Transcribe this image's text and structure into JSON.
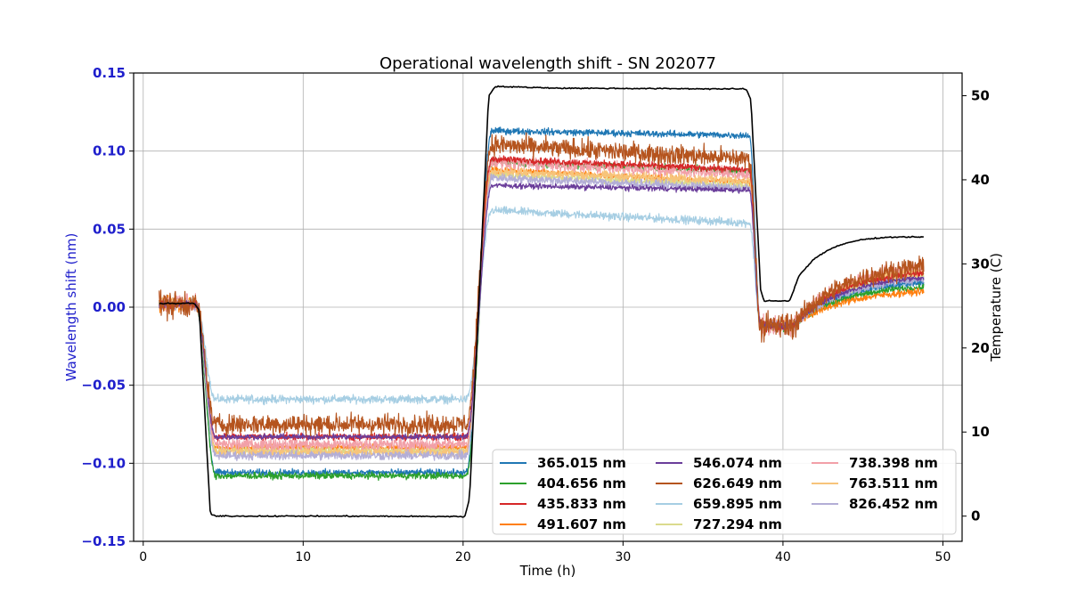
{
  "chart_data": {
    "type": "line",
    "title": "Operational wavelength shift - SN 202077",
    "xlabel": "Time (h)",
    "ylabel": "Wavelength shift (nm)",
    "y2label": "Temperature (C)",
    "xlim": [
      -0.6,
      51.2
    ],
    "ylim": [
      -0.15,
      0.15
    ],
    "y2lim": [
      -3.0,
      52.7
    ],
    "xticks": [
      0,
      10,
      20,
      30,
      40,
      50
    ],
    "yticks": [
      -0.15,
      -0.1,
      -0.05,
      0.0,
      0.05,
      0.1,
      0.15
    ],
    "ytick_labels": [
      "−0.15",
      "−0.10",
      "−0.05",
      "0.00",
      "0.05",
      "0.10",
      "0.15"
    ],
    "y2ticks": [
      0,
      10,
      20,
      30,
      40,
      50
    ],
    "grid": true,
    "legend_position": "lower-right",
    "colors": {
      "left_axis": "#1f1fcc",
      "temperature": "#000000"
    },
    "temperature": {
      "name": "Temperature",
      "color": "#000000",
      "points": [
        [
          1.0,
          25.3
        ],
        [
          3.2,
          25.3
        ],
        [
          3.5,
          24.5
        ],
        [
          4.2,
          0.2
        ],
        [
          4.5,
          0.0
        ],
        [
          12.0,
          0.0
        ],
        [
          20.1,
          -0.05
        ],
        [
          20.4,
          2.0
        ],
        [
          21.6,
          50.0
        ],
        [
          22.0,
          51.1
        ],
        [
          26.0,
          50.9
        ],
        [
          37.7,
          50.8
        ],
        [
          38.0,
          49.5
        ],
        [
          38.6,
          27.0
        ],
        [
          38.8,
          25.6
        ],
        [
          40.4,
          25.6
        ],
        [
          40.6,
          26.5
        ],
        [
          41.0,
          28.6
        ],
        [
          42.0,
          30.7
        ],
        [
          43.0,
          31.8
        ],
        [
          44.0,
          32.5
        ],
        [
          45.0,
          32.9
        ],
        [
          46.0,
          33.1
        ],
        [
          47.0,
          33.2
        ],
        [
          48.8,
          33.2
        ]
      ]
    },
    "series": [
      {
        "name": "365.015 nm",
        "color": "#1f77b4",
        "cold": -0.106,
        "hot_start": 0.113,
        "hot_end": 0.11,
        "noise": 0.0015,
        "warm_end": 0.016
      },
      {
        "name": "404.656 nm",
        "color": "#2ca02c",
        "cold": -0.108,
        "hot_start": 0.093,
        "hot_end": 0.087,
        "noise": 0.0015,
        "warm_end": 0.013
      },
      {
        "name": "435.833 nm",
        "color": "#d62728",
        "cold": -0.083,
        "hot_start": 0.095,
        "hot_end": 0.088,
        "noise": 0.0015,
        "warm_end": 0.022
      },
      {
        "name": "491.607 nm",
        "color": "#ff7f0e",
        "cold": -0.09,
        "hot_start": 0.088,
        "hot_end": 0.08,
        "noise": 0.0015,
        "warm_end": 0.01
      },
      {
        "name": "546.074 nm",
        "color": "#6a3d9a",
        "cold": -0.083,
        "hot_start": 0.078,
        "hot_end": 0.075,
        "noise": 0.0012,
        "warm_end": 0.019
      },
      {
        "name": "626.649 nm",
        "color": "#b5541e",
        "cold": -0.075,
        "hot_start": 0.104,
        "hot_end": 0.095,
        "noise": 0.0045,
        "warm_end": 0.026
      },
      {
        "name": "659.895 nm",
        "color": "#a6cee3",
        "cold": -0.059,
        "hot_start": 0.062,
        "hot_end": 0.054,
        "noise": 0.0018,
        "warm_end": 0.016
      },
      {
        "name": "727.294 nm",
        "color": "#dbdb8d",
        "cold": -0.092,
        "hot_start": 0.085,
        "hot_end": 0.078,
        "noise": 0.0018,
        "warm_end": 0.02
      },
      {
        "name": "738.398 nm",
        "color": "#f2a0a8",
        "cold": -0.088,
        "hot_start": 0.093,
        "hot_end": 0.085,
        "noise": 0.003,
        "warm_end": 0.025
      },
      {
        "name": "763.511 nm",
        "color": "#f7c47a",
        "cold": -0.093,
        "hot_start": 0.087,
        "hot_end": 0.081,
        "noise": 0.002,
        "warm_end": 0.023
      },
      {
        "name": "826.452 nm",
        "color": "#b3aed6",
        "cold": -0.095,
        "hot_start": 0.083,
        "hot_end": 0.076,
        "noise": 0.002,
        "warm_end": 0.018
      }
    ]
  }
}
